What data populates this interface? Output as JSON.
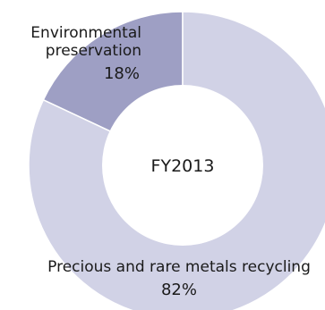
{
  "chart_data": {
    "type": "pie",
    "variant": "donut",
    "center_label": "FY2013",
    "unit": "%",
    "slices": [
      {
        "label_lines": [
          "Environmental",
          "preservation"
        ],
        "value": 18,
        "value_text": "18%",
        "color": "#9e9fc4"
      },
      {
        "label_lines": [
          "Precious and rare metals recycling"
        ],
        "value": 82,
        "value_text": "82%",
        "color": "#d1d2e6"
      }
    ],
    "slice_border_color": "#ffffff"
  }
}
